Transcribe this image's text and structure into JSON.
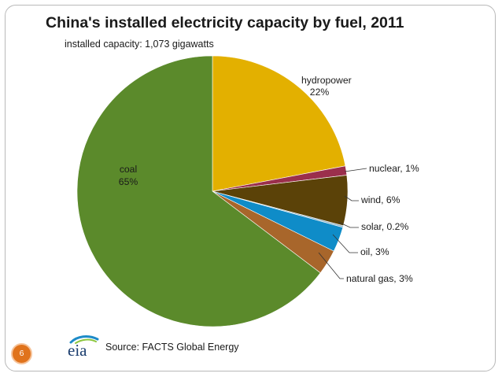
{
  "slide": {
    "page_number": "6",
    "source_text": "Source: FACTS Global Energy",
    "logo_text": "eia"
  },
  "chart_data": {
    "type": "pie",
    "title": "China's installed electricity capacity by fuel, 2011",
    "subtitle": "installed capacity: 1,073 gigawatts",
    "start_angle_deg": 0,
    "direction": "clockwise",
    "slices": [
      {
        "name": "hydropower",
        "label": "hydropower",
        "pct_label": "22%",
        "value": 22.0,
        "color": "#e3b000"
      },
      {
        "name": "nuclear",
        "label": "nuclear, 1%",
        "value": 1.1,
        "color": "#9b2f4c"
      },
      {
        "name": "wind",
        "label": "wind, 6%",
        "value": 6.0,
        "color": "#5b4208"
      },
      {
        "name": "solar",
        "label": "solar, 0.2%",
        "value": 0.2,
        "color": "#8fb2c6"
      },
      {
        "name": "oil",
        "label": "oil, 3%",
        "value": 3.0,
        "color": "#0f8cc8"
      },
      {
        "name": "natural-gas",
        "label": "natural gas, 3%",
        "value": 3.0,
        "color": "#a8662b"
      },
      {
        "name": "coal",
        "label": "coal",
        "pct_label": "65%",
        "value": 64.7,
        "color": "#5b8a2b"
      }
    ]
  }
}
